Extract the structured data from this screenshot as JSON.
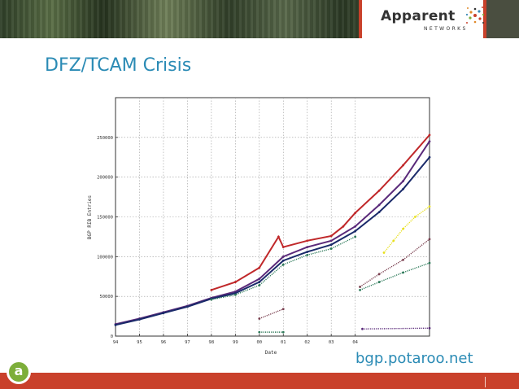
{
  "slide": {
    "title": "DFZ/TCAM Crisis",
    "source": "bgp.potaroo.net"
  },
  "logo": {
    "word": "Apparent",
    "sub": "NETWORKS",
    "circle_letter": "a"
  },
  "colors": {
    "title": "#2b8bb5",
    "accent_red": "#c9412b",
    "circle_green": "#7dae3a",
    "series_red": "#c0282a",
    "series_purple": "#5a2a7a",
    "series_navy": "#1a2a6a",
    "series_green": "#2e7a5a",
    "series_yellow": "#e8e020",
    "series_maroon": "#7a4050"
  },
  "chart_data": {
    "type": "scatter",
    "title": "",
    "xlabel": "Date",
    "ylabel": "BGP RIB Entries",
    "xticks": [
      "94",
      "95",
      "96",
      "97",
      "98",
      "99",
      "00",
      "01",
      "02",
      "03",
      "04"
    ],
    "yticks": [
      "0",
      "50000",
      "100000",
      "150000",
      "200000",
      "250000"
    ],
    "xlim": [
      1994,
      2007.1
    ],
    "ylim": [
      0,
      300000
    ],
    "grid": true,
    "series": [
      {
        "x": [
          1998,
          1999,
          2000,
          2000.8,
          2001,
          2002,
          2003,
          2003.5,
          2004,
          2005,
          2006,
          2007.1
        ],
        "y": [
          58000,
          68000,
          86000,
          125000,
          112000,
          120000,
          126000,
          138000,
          155000,
          183000,
          215000,
          253000
        ]
      },
      {
        "x": [
          1994,
          1995,
          1996,
          1997,
          1998,
          1999,
          2000,
          2001,
          2002,
          2003,
          2004,
          2005,
          2006,
          2007.1
        ],
        "y": [
          15000,
          22000,
          30000,
          38000,
          48000,
          56000,
          72000,
          100000,
          112000,
          120000,
          138000,
          165000,
          195000,
          245000
        ]
      },
      {
        "x": [
          1994,
          1995,
          1996,
          1997,
          1998,
          1999,
          2000,
          2001,
          2002,
          2003,
          2004,
          2005,
          2006,
          2007.1
        ],
        "y": [
          14000,
          21000,
          29000,
          37000,
          47000,
          54000,
          68000,
          95000,
          106000,
          115000,
          132000,
          156000,
          185000,
          225000
        ]
      },
      {
        "x": [
          1998,
          1999,
          2000,
          2001,
          2002,
          2003,
          2004
        ],
        "y": [
          46000,
          52000,
          64000,
          90000,
          102000,
          110000,
          125000
        ]
      },
      {
        "x": [
          2005.2,
          2005.6,
          2006,
          2006.5,
          2007.1
        ],
        "y": [
          105000,
          120000,
          135000,
          150000,
          163000
        ]
      },
      {
        "x": [
          2004.2,
          2005,
          2006,
          2007.1
        ],
        "y": [
          62000,
          78000,
          96000,
          122000
        ]
      },
      {
        "x": [
          2004.2,
          2005,
          2006,
          2007.1
        ],
        "y": [
          58000,
          68000,
          80000,
          92000
        ]
      },
      {
        "x": [
          2000,
          2001
        ],
        "y": [
          22000,
          34000
        ]
      },
      {
        "x": [
          2004.3,
          2007.1
        ],
        "y": [
          9000,
          10000
        ]
      },
      {
        "x": [
          2000,
          2001
        ],
        "y": [
          5000,
          5000
        ]
      }
    ]
  }
}
